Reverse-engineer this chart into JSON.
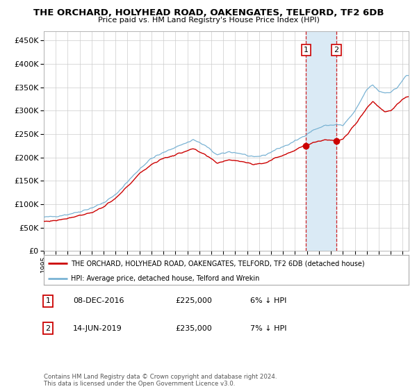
{
  "title": "THE ORCHARD, HOLYHEAD ROAD, OAKENGATES, TELFORD, TF2 6DB",
  "subtitle": "Price paid vs. HM Land Registry's House Price Index (HPI)",
  "legend_line1": "THE ORCHARD, HOLYHEAD ROAD, OAKENGATES, TELFORD, TF2 6DB (detached house)",
  "legend_line2": "HPI: Average price, detached house, Telford and Wrekin",
  "footnote": "Contains HM Land Registry data © Crown copyright and database right 2024.\nThis data is licensed under the Open Government Licence v3.0.",
  "table": [
    {
      "num": "1",
      "date": "08-DEC-2016",
      "price": "£225,000",
      "pct": "6% ↓ HPI"
    },
    {
      "num": "2",
      "date": "14-JUN-2019",
      "price": "£235,000",
      "pct": "7% ↓ HPI"
    }
  ],
  "purchase1_x": 2016.917,
  "purchase1_y": 225000,
  "purchase2_x": 2019.458,
  "purchase2_y": 235000,
  "shade_start": 2016.917,
  "shade_end": 2019.458,
  "vline1_x": 2016.917,
  "vline2_x": 2019.458,
  "hpi_color": "#7ab3d4",
  "price_color": "#cc0000",
  "shade_color": "#daeaf5",
  "background_color": "#ffffff",
  "grid_color": "#cccccc",
  "ylim": [
    0,
    470000
  ],
  "xlim_start": 1995.0,
  "xlim_end": 2025.5,
  "hpi_keypoints_x": [
    1995.0,
    1996.0,
    1997.0,
    1998.0,
    1999.0,
    2000.0,
    2001.0,
    2002.0,
    2003.0,
    2004.0,
    2005.0,
    2006.0,
    2007.0,
    2007.5,
    2008.5,
    2009.5,
    2010.5,
    2011.5,
    2012.5,
    2013.5,
    2014.5,
    2015.5,
    2016.5,
    2017.5,
    2018.5,
    2019.5,
    2020.0,
    2021.0,
    2022.0,
    2022.5,
    2023.0,
    2023.5,
    2024.0,
    2024.5,
    2025.3
  ],
  "hpi_keypoints_y": [
    72000,
    74000,
    78000,
    84000,
    92000,
    103000,
    120000,
    148000,
    175000,
    198000,
    210000,
    222000,
    232000,
    238000,
    225000,
    205000,
    212000,
    208000,
    200000,
    205000,
    218000,
    228000,
    242000,
    258000,
    268000,
    270000,
    268000,
    298000,
    345000,
    355000,
    342000,
    338000,
    340000,
    348000,
    375000
  ],
  "price_keypoints_x": [
    1995.0,
    1996.0,
    1997.0,
    1998.0,
    1999.0,
    2000.0,
    2001.0,
    2002.0,
    2003.0,
    2004.0,
    2005.0,
    2006.0,
    2007.0,
    2007.5,
    2008.5,
    2009.5,
    2010.5,
    2011.5,
    2012.5,
    2013.5,
    2014.5,
    2015.5,
    2016.5,
    2016.917,
    2017.5,
    2018.5,
    2019.458,
    2020.0,
    2021.0,
    2022.0,
    2022.5,
    2023.0,
    2023.5,
    2024.0,
    2024.5,
    2025.3
  ],
  "price_keypoints_y": [
    63000,
    65000,
    70000,
    76000,
    82000,
    94000,
    112000,
    138000,
    165000,
    185000,
    198000,
    205000,
    215000,
    218000,
    205000,
    188000,
    195000,
    192000,
    185000,
    188000,
    200000,
    210000,
    222000,
    225000,
    232000,
    238000,
    235000,
    238000,
    270000,
    305000,
    320000,
    308000,
    298000,
    300000,
    312000,
    330000
  ]
}
